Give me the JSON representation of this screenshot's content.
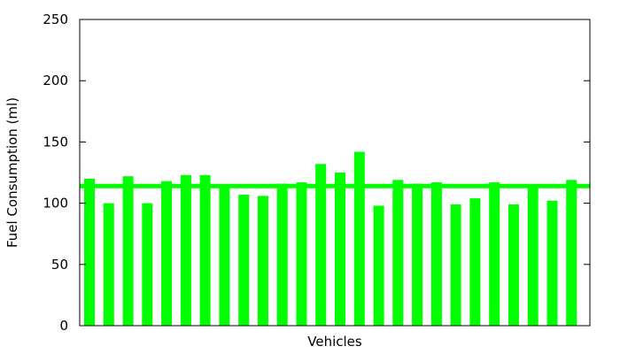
{
  "chart_data": {
    "type": "bar",
    "title": "",
    "xlabel": "Vehicles",
    "ylabel": "Fuel Consumption (ml)",
    "ylim": [
      0,
      250
    ],
    "yticks": [
      "0",
      "50",
      "100",
      "150",
      "200",
      "250"
    ],
    "x_ticks_shown": false,
    "grid": false,
    "legend": "none",
    "bar_color": "#00ff00",
    "reference_line": {
      "value": 114,
      "color": "#00ff00",
      "label": ""
    },
    "values": [
      120,
      100,
      122,
      100,
      118,
      123,
      123,
      113,
      107,
      106,
      116,
      117,
      132,
      125,
      142,
      98,
      119,
      116,
      117,
      99,
      104,
      117,
      99,
      113,
      102,
      119
    ]
  }
}
